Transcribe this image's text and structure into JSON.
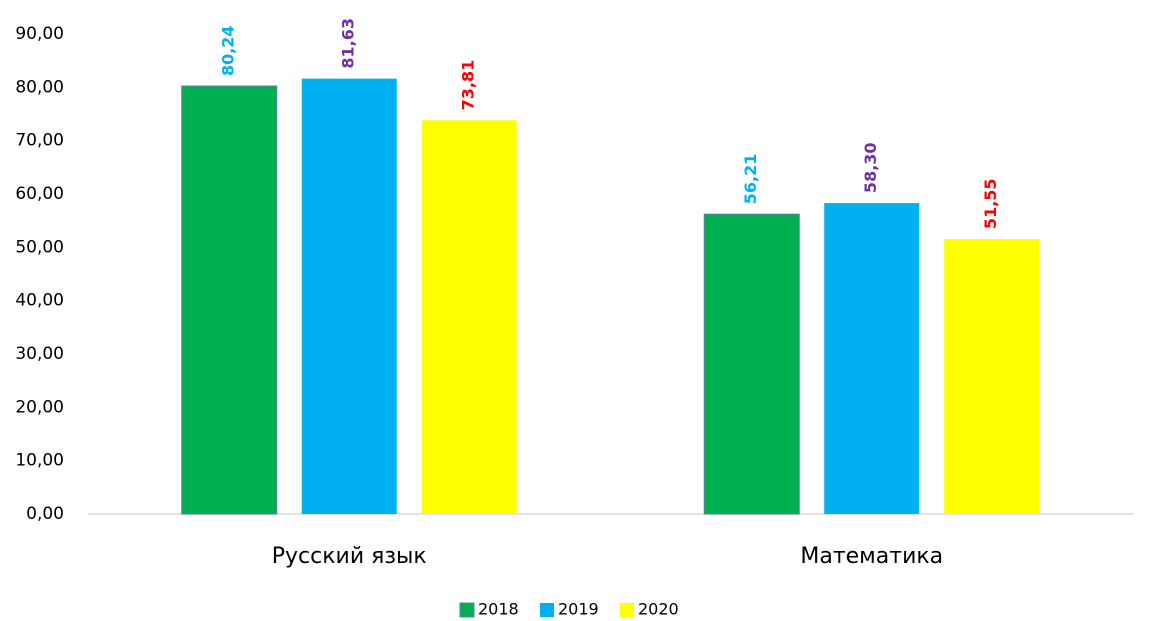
{
  "chart_data": {
    "type": "bar",
    "categories": [
      "Русский язык",
      "Математика"
    ],
    "series": [
      {
        "name": "2018",
        "color": "#00b050",
        "label_color": "#00b0f0",
        "values": [
          80.24,
          56.21
        ],
        "value_labels": [
          "80,24",
          "56,21"
        ]
      },
      {
        "name": "2019",
        "color": "#00b0f0",
        "label_color": "#7030a0",
        "values": [
          81.63,
          58.3
        ],
        "value_labels": [
          "81,63",
          "58,30"
        ]
      },
      {
        "name": "2020",
        "color": "#ffff00",
        "label_color": "#ff0000",
        "values": [
          73.81,
          51.55
        ],
        "value_labels": [
          "73,81",
          "51,55"
        ]
      }
    ],
    "ylim": [
      0,
      90
    ],
    "yticks": [
      {
        "value": 0,
        "label": "0,00"
      },
      {
        "value": 10,
        "label": "10,00"
      },
      {
        "value": 20,
        "label": "20,00"
      },
      {
        "value": 30,
        "label": "30,00"
      },
      {
        "value": 40,
        "label": "40,00"
      },
      {
        "value": 50,
        "label": "50,00"
      },
      {
        "value": 60,
        "label": "60,00"
      },
      {
        "value": 70,
        "label": "70,00"
      },
      {
        "value": 80,
        "label": "80,00"
      },
      {
        "value": 90,
        "label": "90,00"
      }
    ],
    "grid": false,
    "legend": "bottom"
  }
}
